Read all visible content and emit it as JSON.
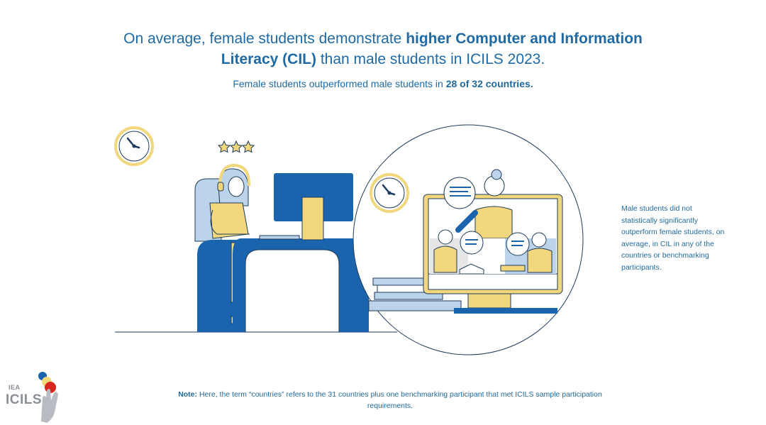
{
  "header": {
    "title_part1": "On average, female students demonstrate ",
    "title_bold": "higher Computer and Information Literacy (CIL)",
    "title_part2": " than male students in ICILS 2023.",
    "subtitle_part1": "Female students outperformed male students in ",
    "subtitle_bold": "28 of 32 countries."
  },
  "side_note": "Male students did not statistically significantly outperform female students, on average, in CIL in any of the countries or benchmarking participants.",
  "footnote": {
    "label": "Note:",
    "text": " Here, the term “countries” refers to the 31 countries plus one benchmarking participant that met ICILS sample participation requirements."
  },
  "logo": {
    "org": "IEA",
    "name": "ICILS"
  },
  "colors": {
    "blue": "#1a64ad",
    "light_blue": "#bcd4ea",
    "yellow": "#f3d77c",
    "dark_outline": "#1e3a5f",
    "text": "#1f6aa5"
  }
}
